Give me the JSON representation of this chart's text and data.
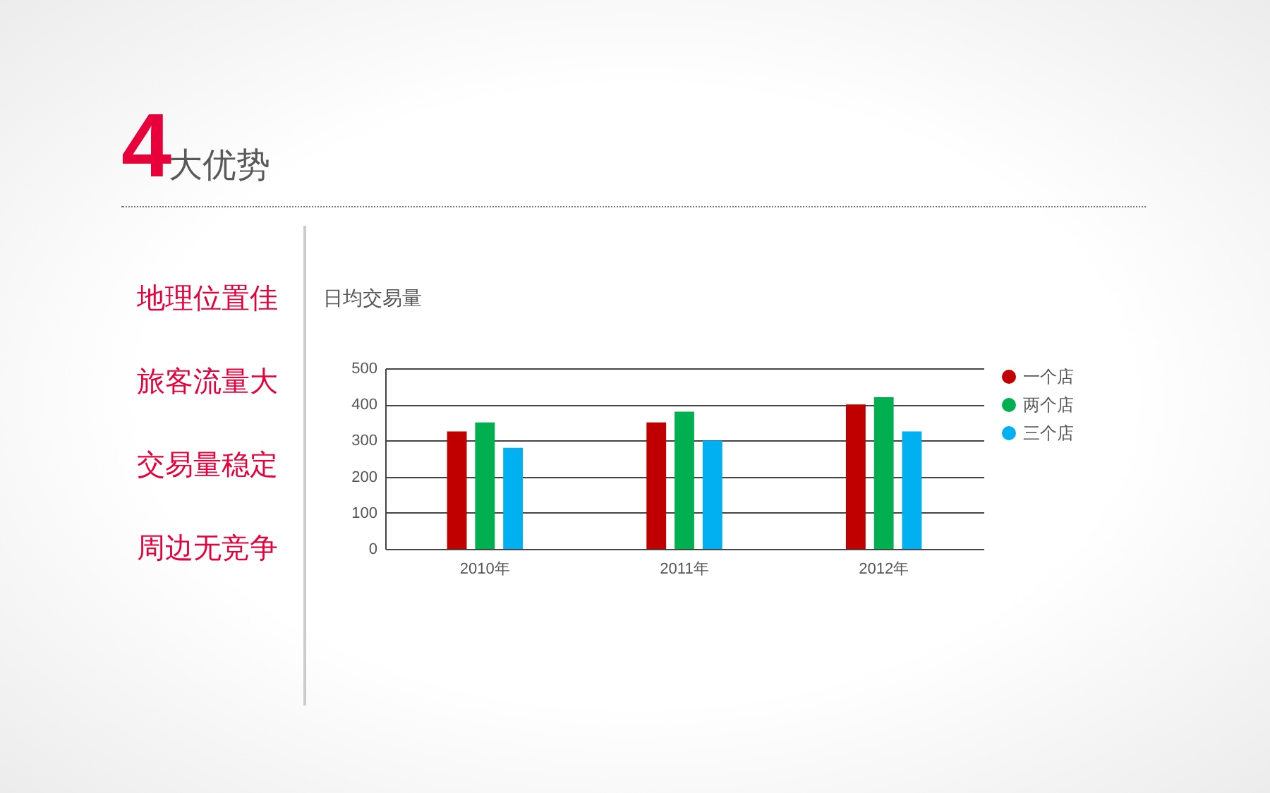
{
  "chart_data": {
    "type": "bar",
    "title": "4大优势",
    "subtitle": "日均交易量",
    "annotations": [
      "地理位置佳",
      "旅客流量大",
      "交易量稳定",
      "周边无竞争"
    ],
    "categories": [
      "2010年",
      "2011年",
      "2012年"
    ],
    "series": [
      {
        "name": "一个店",
        "color": "#c00000",
        "values": [
          325,
          350,
          400
        ]
      },
      {
        "name": "两个店",
        "color": "#00b050",
        "values": [
          350,
          380,
          420
        ]
      },
      {
        "name": "三个店",
        "color": "#00b0f0",
        "values": [
          280,
          300,
          325
        ]
      }
    ],
    "ylim": [
      0,
      500
    ],
    "yticks": [
      0,
      100,
      200,
      300,
      400,
      500
    ],
    "grid": "y",
    "legend": "right"
  }
}
